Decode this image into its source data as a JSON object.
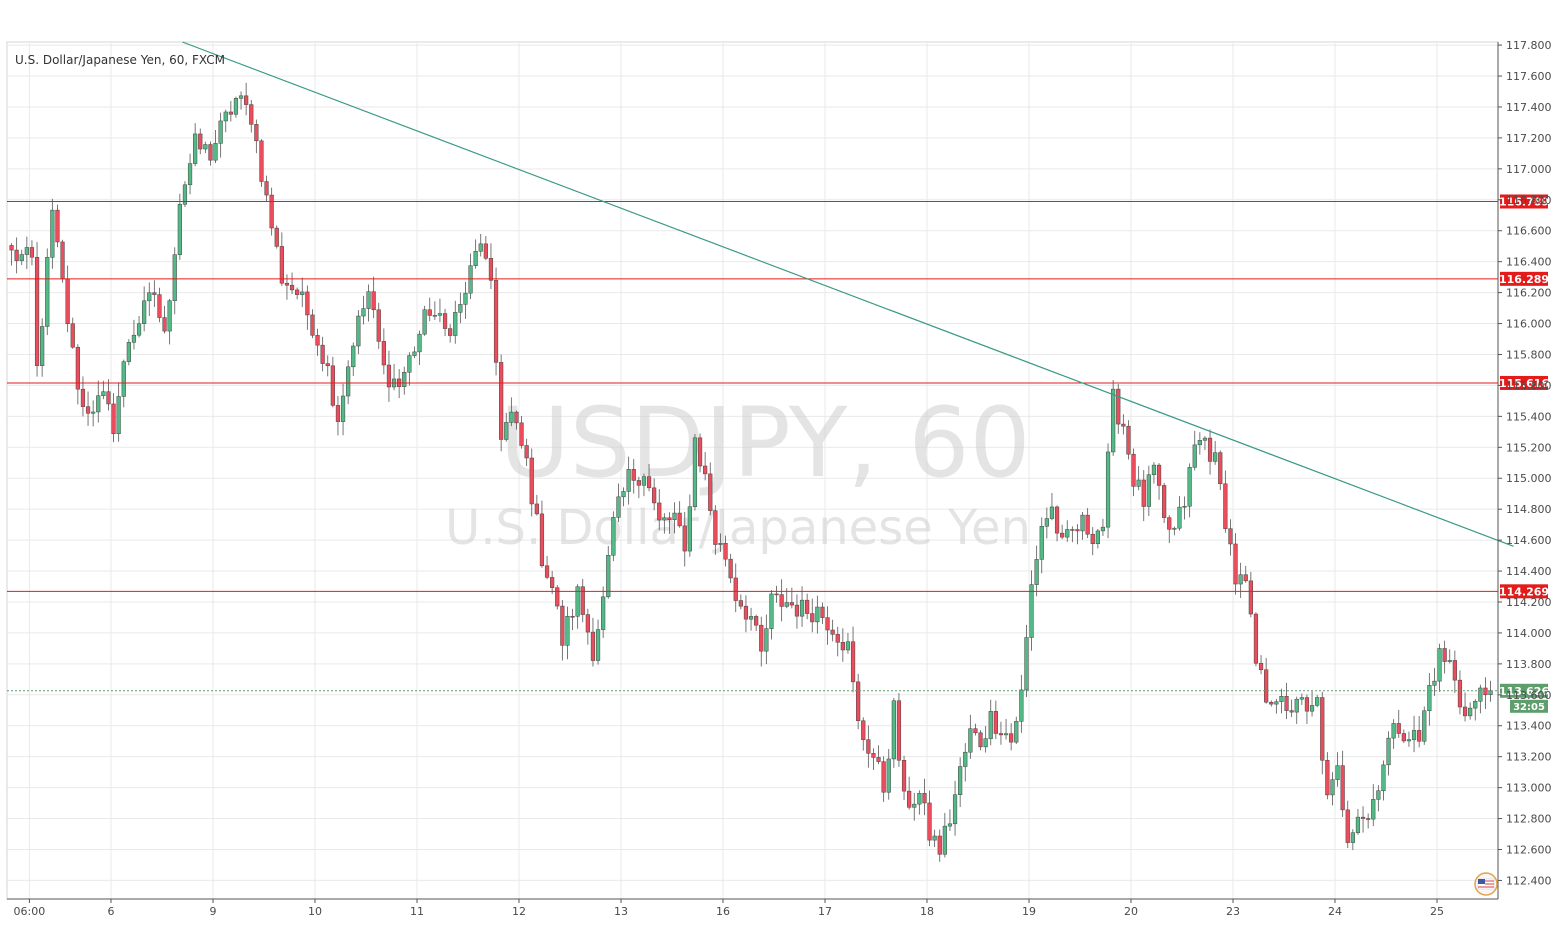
{
  "chart_data": {
    "type": "candlestick",
    "title": "U.S. Dollar/Japanese Yen, 60, FXCM",
    "watermark": {
      "symbol": "USDJPY, 60",
      "name": "U.S. Dollar/Japanese Yen"
    },
    "ylim": [
      112.28,
      117.82
    ],
    "y_ticks": [
      "112.400",
      "112.600",
      "112.800",
      "113.000",
      "113.200",
      "113.400",
      "113.600",
      "113.800",
      "114.000",
      "114.200",
      "114.400",
      "114.600",
      "114.800",
      "115.000",
      "115.200",
      "115.400",
      "115.600",
      "115.800",
      "116.000",
      "116.200",
      "116.400",
      "116.600",
      "116.800",
      "117.000",
      "117.200",
      "117.400",
      "117.600",
      "117.800"
    ],
    "x_labels": [
      "06:00",
      "6",
      "9",
      "10",
      "11",
      "12",
      "13",
      "16",
      "17",
      "18",
      "19",
      "20",
      "23",
      "24",
      "25"
    ],
    "x_label_bars": [
      4,
      20,
      40,
      60,
      80,
      100,
      120,
      140,
      160,
      180,
      200,
      220,
      240,
      260,
      280
    ],
    "horizontal_levels": [
      {
        "price": 116.789,
        "label": "116.789",
        "color": "#e31b1b"
      },
      {
        "price": 116.289,
        "label": "116.289",
        "color": "#e31b1b"
      },
      {
        "price": 115.616,
        "label": "115.616",
        "color": "#e31b1b"
      },
      {
        "price": 114.269,
        "label": "114.269",
        "color": "#e31b1b"
      }
    ],
    "trendline": {
      "start": {
        "bar": 34,
        "price": 117.82
      },
      "end": {
        "bar": 295,
        "price": 114.56
      },
      "color": "#3a9a87"
    },
    "last_price": {
      "value": 113.626,
      "label": "113.626",
      "countdown": "32:05",
      "color": "#5e9e6c"
    },
    "anchors": [
      {
        "bar": 0,
        "price": 116.45
      },
      {
        "bar": 4,
        "price": 116.4
      },
      {
        "bar": 5,
        "price": 115.7
      },
      {
        "bar": 8,
        "price": 116.7
      },
      {
        "bar": 12,
        "price": 115.8
      },
      {
        "bar": 14,
        "price": 115.45
      },
      {
        "bar": 18,
        "price": 115.5
      },
      {
        "bar": 20,
        "price": 115.35
      },
      {
        "bar": 23,
        "price": 115.9
      },
      {
        "bar": 28,
        "price": 116.2
      },
      {
        "bar": 30,
        "price": 115.9
      },
      {
        "bar": 33,
        "price": 116.8
      },
      {
        "bar": 36,
        "price": 117.15
      },
      {
        "bar": 39,
        "price": 117.1
      },
      {
        "bar": 41,
        "price": 117.25
      },
      {
        "bar": 44,
        "price": 117.45
      },
      {
        "bar": 47,
        "price": 117.35
      },
      {
        "bar": 50,
        "price": 116.8
      },
      {
        "bar": 53,
        "price": 116.3
      },
      {
        "bar": 56,
        "price": 116.2
      },
      {
        "bar": 59,
        "price": 116.0
      },
      {
        "bar": 62,
        "price": 115.7
      },
      {
        "bar": 64,
        "price": 115.4
      },
      {
        "bar": 67,
        "price": 115.9
      },
      {
        "bar": 70,
        "price": 116.2
      },
      {
        "bar": 73,
        "price": 115.7
      },
      {
        "bar": 76,
        "price": 115.6
      },
      {
        "bar": 79,
        "price": 115.85
      },
      {
        "bar": 82,
        "price": 116.1
      },
      {
        "bar": 85,
        "price": 115.95
      },
      {
        "bar": 88,
        "price": 116.1
      },
      {
        "bar": 92,
        "price": 116.55
      },
      {
        "bar": 94,
        "price": 116.2
      },
      {
        "bar": 96,
        "price": 115.3
      },
      {
        "bar": 98,
        "price": 115.4
      },
      {
        "bar": 101,
        "price": 115.1
      },
      {
        "bar": 104,
        "price": 114.5
      },
      {
        "bar": 106,
        "price": 114.3
      },
      {
        "bar": 108,
        "price": 113.95
      },
      {
        "bar": 111,
        "price": 114.25
      },
      {
        "bar": 114,
        "price": 113.9
      },
      {
        "bar": 116,
        "price": 114.2
      },
      {
        "bar": 118,
        "price": 114.7
      },
      {
        "bar": 121,
        "price": 115.0
      },
      {
        "bar": 124,
        "price": 115.05
      },
      {
        "bar": 127,
        "price": 114.7
      },
      {
        "bar": 130,
        "price": 114.75
      },
      {
        "bar": 132,
        "price": 114.5
      },
      {
        "bar": 134,
        "price": 115.25
      },
      {
        "bar": 136,
        "price": 115.0
      },
      {
        "bar": 138,
        "price": 114.6
      },
      {
        "bar": 140,
        "price": 114.5
      },
      {
        "bar": 142,
        "price": 114.25
      },
      {
        "bar": 145,
        "price": 114.1
      },
      {
        "bar": 147,
        "price": 113.85
      },
      {
        "bar": 149,
        "price": 114.2
      },
      {
        "bar": 152,
        "price": 114.2
      },
      {
        "bar": 155,
        "price": 114.15
      },
      {
        "bar": 158,
        "price": 114.15
      },
      {
        "bar": 161,
        "price": 114.05
      },
      {
        "bar": 164,
        "price": 113.9
      },
      {
        "bar": 166,
        "price": 113.4
      },
      {
        "bar": 169,
        "price": 113.2
      },
      {
        "bar": 171,
        "price": 113.0
      },
      {
        "bar": 173,
        "price": 113.5
      },
      {
        "bar": 175,
        "price": 112.9
      },
      {
        "bar": 178,
        "price": 112.95
      },
      {
        "bar": 180,
        "price": 112.7
      },
      {
        "bar": 182,
        "price": 112.6
      },
      {
        "bar": 184,
        "price": 112.8
      },
      {
        "bar": 186,
        "price": 113.1
      },
      {
        "bar": 188,
        "price": 113.35
      },
      {
        "bar": 190,
        "price": 113.3
      },
      {
        "bar": 192,
        "price": 113.45
      },
      {
        "bar": 194,
        "price": 113.4
      },
      {
        "bar": 196,
        "price": 113.3
      },
      {
        "bar": 198,
        "price": 113.6
      },
      {
        "bar": 200,
        "price": 114.3
      },
      {
        "bar": 202,
        "price": 114.7
      },
      {
        "bar": 204,
        "price": 114.8
      },
      {
        "bar": 206,
        "price": 114.55
      },
      {
        "bar": 208,
        "price": 114.65
      },
      {
        "bar": 210,
        "price": 114.7
      },
      {
        "bar": 212,
        "price": 114.65
      },
      {
        "bar": 214,
        "price": 114.7
      },
      {
        "bar": 216,
        "price": 115.5
      },
      {
        "bar": 218,
        "price": 115.35
      },
      {
        "bar": 220,
        "price": 115.0
      },
      {
        "bar": 222,
        "price": 114.85
      },
      {
        "bar": 224,
        "price": 115.05
      },
      {
        "bar": 226,
        "price": 114.7
      },
      {
        "bar": 228,
        "price": 114.65
      },
      {
        "bar": 230,
        "price": 114.85
      },
      {
        "bar": 232,
        "price": 115.2
      },
      {
        "bar": 234,
        "price": 115.25
      },
      {
        "bar": 236,
        "price": 115.1
      },
      {
        "bar": 238,
        "price": 114.75
      },
      {
        "bar": 240,
        "price": 114.35
      },
      {
        "bar": 242,
        "price": 114.3
      },
      {
        "bar": 244,
        "price": 113.8
      },
      {
        "bar": 246,
        "price": 113.6
      },
      {
        "bar": 248,
        "price": 113.6
      },
      {
        "bar": 250,
        "price": 113.45
      },
      {
        "bar": 252,
        "price": 113.6
      },
      {
        "bar": 254,
        "price": 113.45
      },
      {
        "bar": 256,
        "price": 113.55
      },
      {
        "bar": 258,
        "price": 112.9
      },
      {
        "bar": 260,
        "price": 113.1
      },
      {
        "bar": 262,
        "price": 112.7
      },
      {
        "bar": 264,
        "price": 112.85
      },
      {
        "bar": 266,
        "price": 112.8
      },
      {
        "bar": 268,
        "price": 113.05
      },
      {
        "bar": 270,
        "price": 113.3
      },
      {
        "bar": 272,
        "price": 113.4
      },
      {
        "bar": 274,
        "price": 113.35
      },
      {
        "bar": 276,
        "price": 113.3
      },
      {
        "bar": 278,
        "price": 113.65
      },
      {
        "bar": 280,
        "price": 113.85
      },
      {
        "bar": 282,
        "price": 113.8
      },
      {
        "bar": 284,
        "price": 113.55
      },
      {
        "bar": 286,
        "price": 113.5
      },
      {
        "bar": 288,
        "price": 113.6
      },
      {
        "bar": 290,
        "price": 113.626
      }
    ],
    "bar_count": 291,
    "grid": true,
    "colors": {
      "up": "#53b987",
      "down": "#eb4d5c",
      "grid": "#e9e9e9",
      "axis": "#555555"
    }
  },
  "icons": {
    "bottom_right": "flag-icon"
  }
}
